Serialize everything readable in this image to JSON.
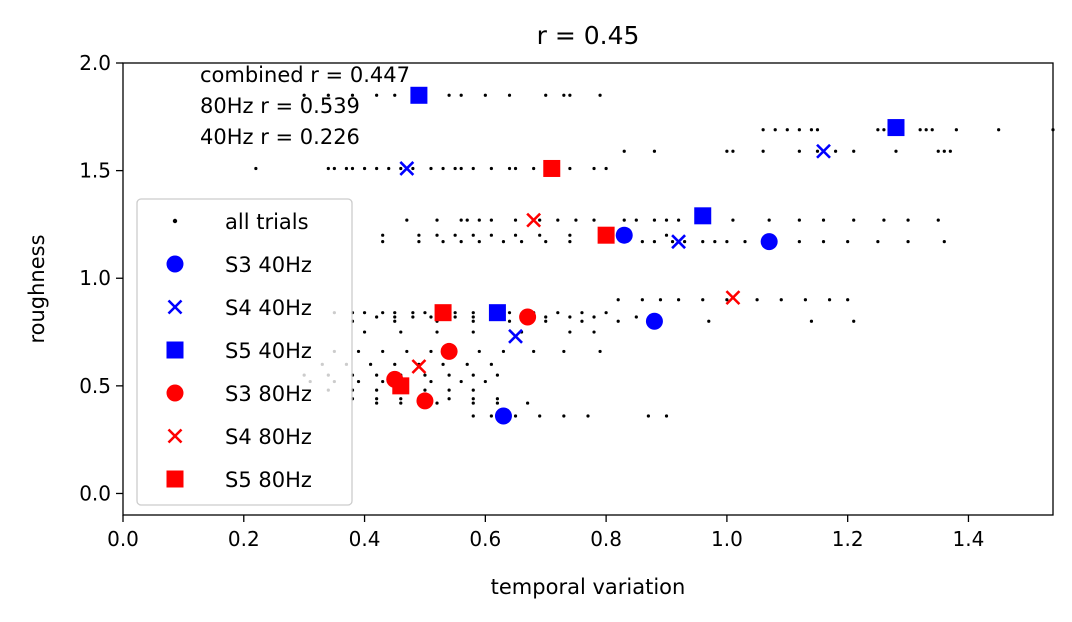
{
  "chart_data": {
    "type": "scatter",
    "title": "r = 0.45",
    "xlabel": "temporal variation",
    "ylabel": "roughness",
    "xlim": [
      0.0,
      1.54
    ],
    "ylim": [
      -0.1,
      2.0
    ],
    "xticks": [
      "0.0",
      "0.2",
      "0.4",
      "0.6",
      "0.8",
      "1.0",
      "1.2",
      "1.4"
    ],
    "yticks": [
      "0.0",
      "0.5",
      "1.0",
      "1.5",
      "2.0"
    ],
    "grid": false,
    "legend_position": "lower-left",
    "annotations": [
      "combined r = 0.447",
      "80Hz r = 0.539",
      "40Hz r = 0.226"
    ],
    "series": [
      {
        "name": "all trials",
        "marker": "dot",
        "color": "#000000",
        "points": [
          [
            0.3,
            1.85
          ],
          [
            0.34,
            1.85
          ],
          [
            0.38,
            1.85
          ],
          [
            0.42,
            1.85
          ],
          [
            0.45,
            1.85
          ],
          [
            0.49,
            1.85
          ],
          [
            0.54,
            1.85
          ],
          [
            0.56,
            1.85
          ],
          [
            0.6,
            1.85
          ],
          [
            0.64,
            1.85
          ],
          [
            0.7,
            1.85
          ],
          [
            0.73,
            1.85
          ],
          [
            0.74,
            1.85
          ],
          [
            0.79,
            1.85
          ],
          [
            0.22,
            1.51
          ],
          [
            0.34,
            1.51
          ],
          [
            0.35,
            1.51
          ],
          [
            0.37,
            1.51
          ],
          [
            0.38,
            1.51
          ],
          [
            0.4,
            1.51
          ],
          [
            0.42,
            1.51
          ],
          [
            0.44,
            1.51
          ],
          [
            0.46,
            1.51
          ],
          [
            0.48,
            1.51
          ],
          [
            0.51,
            1.51
          ],
          [
            0.53,
            1.51
          ],
          [
            0.55,
            1.51
          ],
          [
            0.56,
            1.51
          ],
          [
            0.58,
            1.51
          ],
          [
            0.61,
            1.51
          ],
          [
            0.64,
            1.51
          ],
          [
            0.65,
            1.51
          ],
          [
            0.68,
            1.51
          ],
          [
            0.7,
            1.51
          ],
          [
            0.74,
            1.51
          ],
          [
            0.78,
            1.51
          ],
          [
            0.8,
            1.51
          ],
          [
            0.83,
            1.59
          ],
          [
            0.88,
            1.59
          ],
          [
            1.0,
            1.59
          ],
          [
            1.01,
            1.59
          ],
          [
            1.06,
            1.59
          ],
          [
            1.12,
            1.59
          ],
          [
            1.15,
            1.59
          ],
          [
            1.18,
            1.59
          ],
          [
            1.21,
            1.59
          ],
          [
            1.28,
            1.59
          ],
          [
            1.35,
            1.59
          ],
          [
            1.36,
            1.59
          ],
          [
            1.37,
            1.59
          ],
          [
            1.06,
            1.69
          ],
          [
            1.08,
            1.69
          ],
          [
            1.1,
            1.69
          ],
          [
            1.12,
            1.69
          ],
          [
            1.14,
            1.69
          ],
          [
            1.15,
            1.69
          ],
          [
            1.25,
            1.69
          ],
          [
            1.26,
            1.69
          ],
          [
            1.28,
            1.69
          ],
          [
            1.32,
            1.69
          ],
          [
            1.33,
            1.69
          ],
          [
            1.34,
            1.69
          ],
          [
            1.38,
            1.69
          ],
          [
            1.45,
            1.69
          ],
          [
            1.54,
            1.69
          ],
          [
            0.47,
            1.27
          ],
          [
            0.52,
            1.27
          ],
          [
            0.56,
            1.27
          ],
          [
            0.57,
            1.27
          ],
          [
            0.59,
            1.27
          ],
          [
            0.61,
            1.27
          ],
          [
            0.65,
            1.27
          ],
          [
            0.69,
            1.27
          ],
          [
            0.72,
            1.27
          ],
          [
            0.75,
            1.27
          ],
          [
            0.78,
            1.27
          ],
          [
            0.83,
            1.27
          ],
          [
            0.85,
            1.27
          ],
          [
            0.88,
            1.27
          ],
          [
            0.9,
            1.27
          ],
          [
            0.92,
            1.27
          ],
          [
            0.96,
            1.27
          ],
          [
            1.01,
            1.27
          ],
          [
            1.07,
            1.27
          ],
          [
            1.12,
            1.27
          ],
          [
            1.16,
            1.27
          ],
          [
            1.21,
            1.27
          ],
          [
            1.26,
            1.27
          ],
          [
            1.3,
            1.27
          ],
          [
            1.35,
            1.27
          ],
          [
            0.43,
            1.2
          ],
          [
            0.49,
            1.2
          ],
          [
            0.52,
            1.2
          ],
          [
            0.55,
            1.2
          ],
          [
            0.58,
            1.2
          ],
          [
            0.61,
            1.2
          ],
          [
            0.65,
            1.2
          ],
          [
            0.69,
            1.2
          ],
          [
            0.74,
            1.2
          ],
          [
            0.79,
            1.2
          ],
          [
            0.83,
            1.2
          ],
          [
            0.9,
            1.2
          ],
          [
            0.43,
            1.17
          ],
          [
            0.49,
            1.17
          ],
          [
            0.53,
            1.17
          ],
          [
            0.56,
            1.17
          ],
          [
            0.59,
            1.17
          ],
          [
            0.63,
            1.17
          ],
          [
            0.66,
            1.17
          ],
          [
            0.7,
            1.17
          ],
          [
            0.74,
            1.17
          ],
          [
            0.79,
            1.17
          ],
          [
            0.86,
            1.17
          ],
          [
            0.88,
            1.17
          ],
          [
            0.91,
            1.17
          ],
          [
            0.93,
            1.17
          ],
          [
            0.96,
            1.17
          ],
          [
            0.98,
            1.17
          ],
          [
            1.0,
            1.17
          ],
          [
            1.03,
            1.17
          ],
          [
            1.06,
            1.17
          ],
          [
            1.12,
            1.17
          ],
          [
            1.16,
            1.17
          ],
          [
            1.2,
            1.17
          ],
          [
            1.25,
            1.17
          ],
          [
            1.3,
            1.17
          ],
          [
            1.36,
            1.17
          ],
          [
            0.82,
            0.9
          ],
          [
            0.86,
            0.9
          ],
          [
            0.89,
            0.9
          ],
          [
            0.92,
            0.9
          ],
          [
            0.96,
            0.9
          ],
          [
            1.0,
            0.9
          ],
          [
            1.05,
            0.9
          ],
          [
            1.09,
            0.9
          ],
          [
            1.13,
            0.9
          ],
          [
            1.17,
            0.9
          ],
          [
            1.2,
            0.9
          ],
          [
            0.97,
            0.8
          ],
          [
            1.14,
            0.8
          ],
          [
            1.21,
            0.8
          ],
          [
            0.35,
            0.84
          ],
          [
            0.38,
            0.84
          ],
          [
            0.4,
            0.84
          ],
          [
            0.43,
            0.84
          ],
          [
            0.45,
            0.84
          ],
          [
            0.48,
            0.84
          ],
          [
            0.5,
            0.84
          ],
          [
            0.53,
            0.84
          ],
          [
            0.55,
            0.84
          ],
          [
            0.58,
            0.84
          ],
          [
            0.61,
            0.84
          ],
          [
            0.64,
            0.84
          ],
          [
            0.68,
            0.84
          ],
          [
            0.72,
            0.84
          ],
          [
            0.76,
            0.84
          ],
          [
            0.8,
            0.84
          ],
          [
            0.42,
            0.82
          ],
          [
            0.45,
            0.82
          ],
          [
            0.48,
            0.82
          ],
          [
            0.51,
            0.82
          ],
          [
            0.55,
            0.82
          ],
          [
            0.58,
            0.82
          ],
          [
            0.62,
            0.82
          ],
          [
            0.66,
            0.82
          ],
          [
            0.7,
            0.82
          ],
          [
            0.74,
            0.82
          ],
          [
            0.78,
            0.82
          ],
          [
            0.85,
            0.82
          ],
          [
            0.88,
            0.82
          ],
          [
            0.38,
            0.8
          ],
          [
            0.45,
            0.8
          ],
          [
            0.52,
            0.8
          ],
          [
            0.58,
            0.8
          ],
          [
            0.64,
            0.8
          ],
          [
            0.7,
            0.8
          ],
          [
            0.76,
            0.8
          ],
          [
            0.82,
            0.8
          ],
          [
            0.4,
            0.75
          ],
          [
            0.46,
            0.75
          ],
          [
            0.52,
            0.75
          ],
          [
            0.58,
            0.75
          ],
          [
            0.66,
            0.75
          ],
          [
            0.74,
            0.75
          ],
          [
            0.78,
            0.75
          ],
          [
            0.35,
            0.66
          ],
          [
            0.39,
            0.66
          ],
          [
            0.43,
            0.66
          ],
          [
            0.47,
            0.66
          ],
          [
            0.51,
            0.66
          ],
          [
            0.55,
            0.66
          ],
          [
            0.59,
            0.66
          ],
          [
            0.63,
            0.66
          ],
          [
            0.68,
            0.66
          ],
          [
            0.73,
            0.66
          ],
          [
            0.79,
            0.66
          ],
          [
            0.33,
            0.6
          ],
          [
            0.37,
            0.6
          ],
          [
            0.41,
            0.6
          ],
          [
            0.45,
            0.6
          ],
          [
            0.49,
            0.6
          ],
          [
            0.53,
            0.6
          ],
          [
            0.57,
            0.6
          ],
          [
            0.61,
            0.6
          ],
          [
            0.3,
            0.55
          ],
          [
            0.34,
            0.55
          ],
          [
            0.38,
            0.55
          ],
          [
            0.42,
            0.55
          ],
          [
            0.46,
            0.55
          ],
          [
            0.5,
            0.55
          ],
          [
            0.54,
            0.55
          ],
          [
            0.58,
            0.55
          ],
          [
            0.62,
            0.55
          ],
          [
            0.31,
            0.52
          ],
          [
            0.35,
            0.52
          ],
          [
            0.39,
            0.52
          ],
          [
            0.43,
            0.52
          ],
          [
            0.47,
            0.52
          ],
          [
            0.51,
            0.52
          ],
          [
            0.56,
            0.52
          ],
          [
            0.6,
            0.52
          ],
          [
            0.34,
            0.48
          ],
          [
            0.38,
            0.48
          ],
          [
            0.42,
            0.48
          ],
          [
            0.46,
            0.48
          ],
          [
            0.5,
            0.48
          ],
          [
            0.54,
            0.48
          ],
          [
            0.58,
            0.48
          ],
          [
            0.38,
            0.44
          ],
          [
            0.42,
            0.44
          ],
          [
            0.46,
            0.44
          ],
          [
            0.5,
            0.44
          ],
          [
            0.54,
            0.44
          ],
          [
            0.58,
            0.44
          ],
          [
            0.62,
            0.44
          ],
          [
            0.42,
            0.42
          ],
          [
            0.46,
            0.42
          ],
          [
            0.52,
            0.42
          ],
          [
            0.58,
            0.42
          ],
          [
            0.62,
            0.42
          ],
          [
            0.67,
            0.42
          ],
          [
            0.58,
            0.36
          ],
          [
            0.61,
            0.36
          ],
          [
            0.65,
            0.36
          ],
          [
            0.69,
            0.36
          ],
          [
            0.73,
            0.36
          ],
          [
            0.77,
            0.36
          ],
          [
            0.87,
            0.36
          ],
          [
            0.9,
            0.36
          ]
        ]
      },
      {
        "name": "S3 40Hz",
        "marker": "circle",
        "color": "#0000ff",
        "points": [
          [
            0.63,
            0.36
          ],
          [
            0.83,
            1.2
          ],
          [
            0.88,
            0.8
          ],
          [
            1.07,
            1.17
          ]
        ]
      },
      {
        "name": "S4 40Hz",
        "marker": "x",
        "color": "#0000ff",
        "points": [
          [
            0.47,
            1.51
          ],
          [
            0.65,
            0.73
          ],
          [
            0.92,
            1.17
          ],
          [
            1.16,
            1.59
          ]
        ]
      },
      {
        "name": "S5 40Hz",
        "marker": "square",
        "color": "#0000ff",
        "points": [
          [
            0.49,
            1.85
          ],
          [
            0.62,
            0.84
          ],
          [
            0.96,
            1.29
          ],
          [
            1.28,
            1.7
          ]
        ]
      },
      {
        "name": "S3 80Hz",
        "marker": "circle",
        "color": "#ff0000",
        "points": [
          [
            0.45,
            0.53
          ],
          [
            0.5,
            0.43
          ],
          [
            0.54,
            0.66
          ],
          [
            0.67,
            0.82
          ]
        ]
      },
      {
        "name": "S4 80Hz",
        "marker": "x",
        "color": "#ff0000",
        "points": [
          [
            0.49,
            0.59
          ],
          [
            0.68,
            1.27
          ],
          [
            1.01,
            0.91
          ]
        ]
      },
      {
        "name": "S5 80Hz",
        "marker": "square",
        "color": "#ff0000",
        "points": [
          [
            0.46,
            0.5
          ],
          [
            0.53,
            0.84
          ],
          [
            0.71,
            1.51
          ],
          [
            0.8,
            1.2
          ]
        ]
      }
    ]
  }
}
